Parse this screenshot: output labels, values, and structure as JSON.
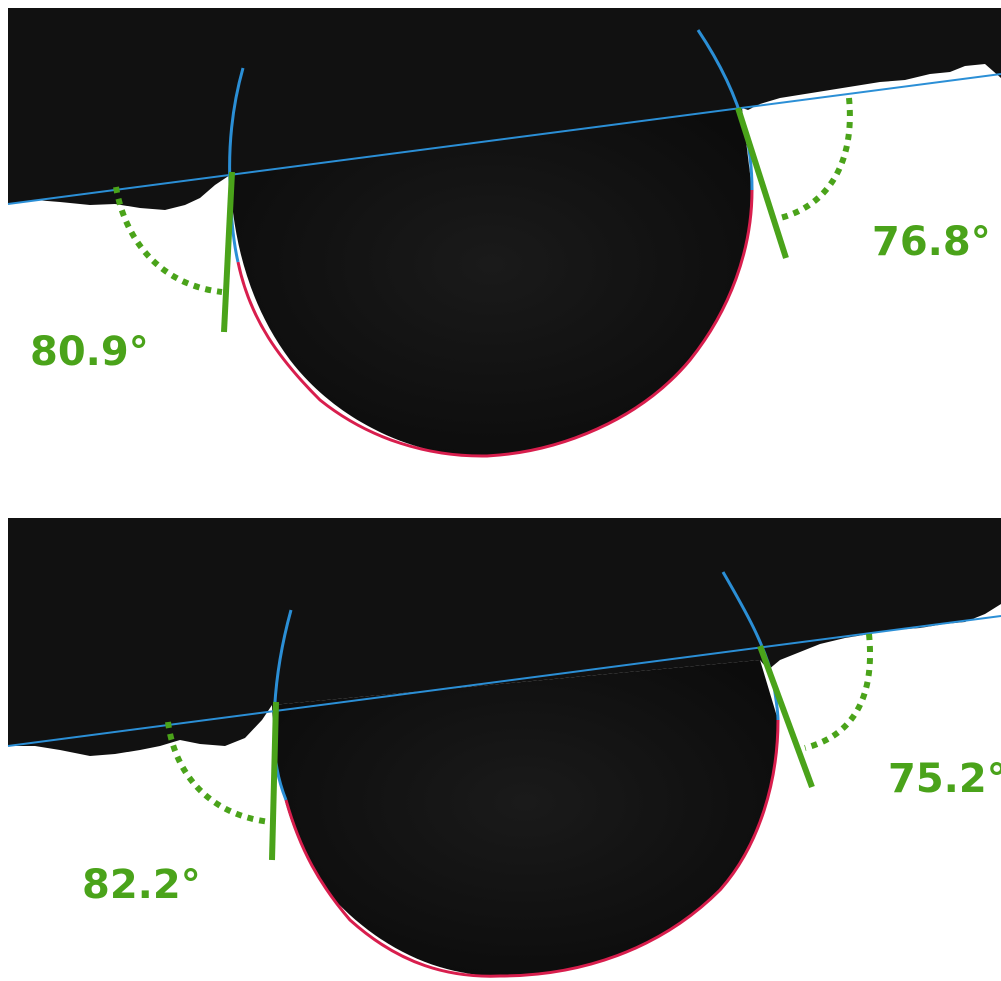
{
  "colors": {
    "sample_fill": "#101010",
    "baseline": "#2b8fd6",
    "fit_red": "#d81e4d",
    "tangent_green": "#4aa31a",
    "background": "#ffffff"
  },
  "panels": [
    {
      "left_angle": "80.9°",
      "right_angle": "76.8°"
    },
    {
      "left_angle": "82.2°",
      "right_angle": "75.2°"
    }
  ]
}
